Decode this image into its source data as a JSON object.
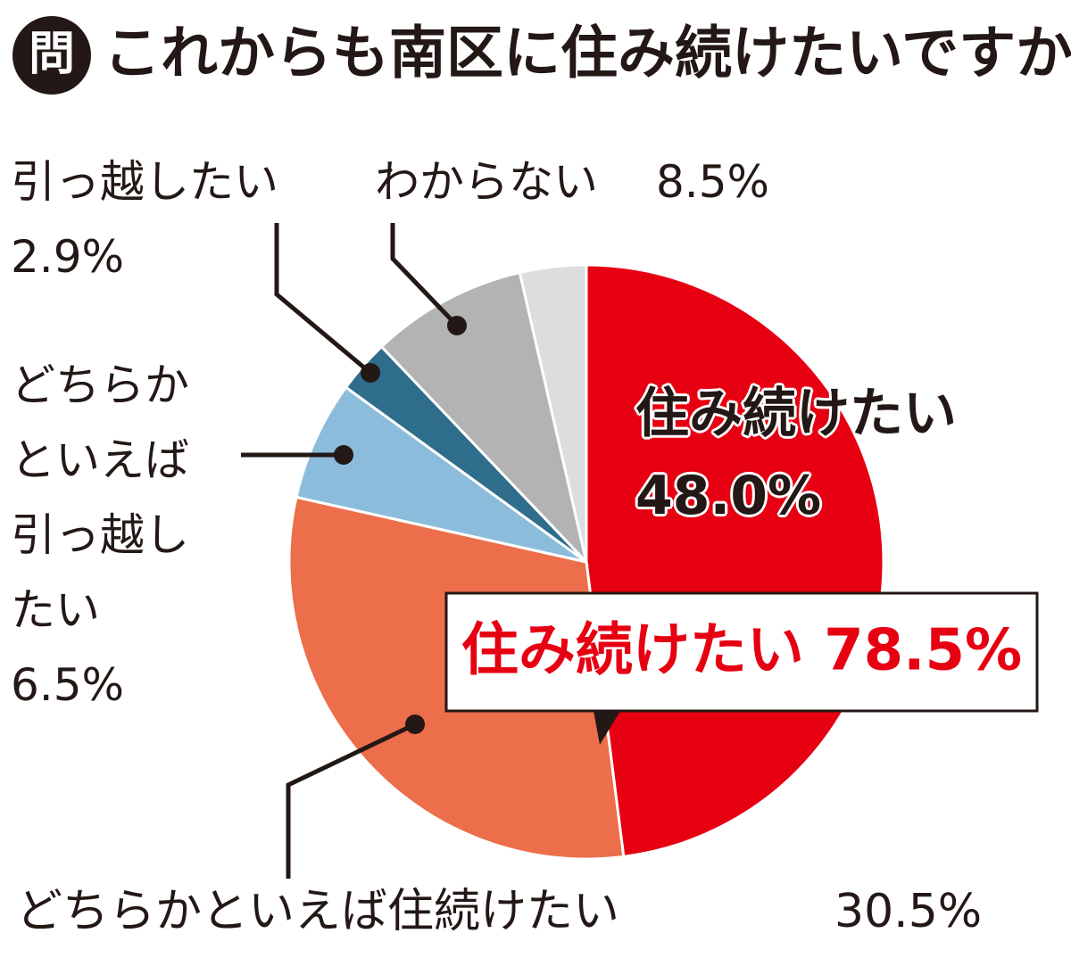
{
  "chart_data": {
    "type": "pie",
    "badge": "問",
    "title": "これからも南区に住み続けたいですか",
    "categories": [
      "住み続けたい",
      "どちらかといえば住続けたい",
      "どちらか\nといえば\n引っ越し\nたい",
      "引っ越したい",
      "わからない",
      null
    ],
    "values": [
      48.0,
      30.5,
      6.5,
      2.9,
      8.5,
      3.6
    ],
    "value_labels": [
      "48.0%",
      "30.5%",
      "6.5%",
      "2.9%",
      "8.5%",
      null
    ],
    "colors": [
      "#e60012",
      "#ec6e4a",
      "#8bbcdb",
      "#2f6d8c",
      "#b3b3b3",
      "#dcdddd"
    ],
    "annotation": "住み続けたい 78.5%"
  }
}
